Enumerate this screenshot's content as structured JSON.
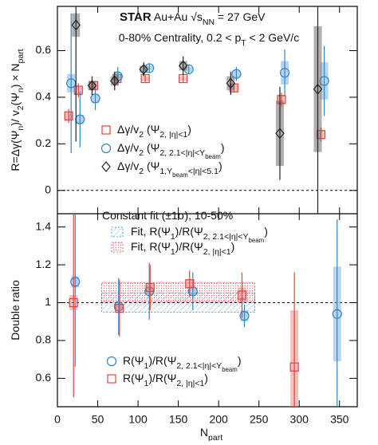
{
  "chart_data": [
    {
      "type": "scatter",
      "title": [
        {
          "b": "STAR"
        },
        "  Au+Au  ",
        "√s",
        {
          "sub": "NN"
        },
        " = 27 GeV"
      ],
      "subtitle": [
        "0-80% Centrality, 0.2 < p",
        {
          "sub": "T"
        },
        " < 2 GeV/c"
      ],
      "ylabel": [
        "R=Δγ(Ψ",
        {
          "sub": "n"
        },
        ")/ v",
        {
          "sub": "2"
        },
        "(Ψ",
        {
          "sub": "n"
        },
        ") × N",
        {
          "sub": "part"
        }
      ],
      "xlim": [
        0,
        372
      ],
      "ylim": [
        -0.1,
        0.79
      ],
      "yticks": [
        0,
        0.2,
        0.4,
        0.6
      ],
      "ref_line": 0,
      "series": [
        {
          "name": [
            "Δγ/v",
            {
              "sub": "2"
            },
            " (Ψ",
            {
              "sub": "2, |η|<1"
            },
            ")"
          ],
          "color": "#e8413c",
          "sys_color": "rgba(240,110,110,0.45)",
          "marker": "square",
          "x": [
            14,
            26,
            45,
            74,
            109,
            156,
            219,
            278,
            327
          ],
          "values": [
            0.32,
            0.43,
            0.45,
            0.48,
            0.48,
            0.48,
            0.44,
            0.39,
            0.24
          ],
          "errors": [
            0.03,
            0.03,
            0.02,
            0.02,
            0.015,
            0.015,
            0.02,
            0.03,
            0.03
          ],
          "sys": [
            0.02,
            0.02,
            0.015,
            0.015,
            0.01,
            0.01,
            0.015,
            0.02,
            0.02
          ]
        },
        {
          "name": [
            "Δγ/v",
            {
              "sub": "2"
            },
            " (Ψ",
            {
              "sub": [
                "2, 2.1<|η|<Y",
                {
                  "sub": "beam"
                }
              ]
            },
            ")"
          ],
          "color": "#2e86c9",
          "sys_color": "rgba(100,160,220,0.45)",
          "marker": "circle",
          "x": [
            17,
            28,
            47,
            75,
            114,
            163,
            222,
            282,
            331
          ],
          "values": [
            0.46,
            0.305,
            0.395,
            0.49,
            0.525,
            0.52,
            0.5,
            0.505,
            0.47
          ],
          "errors": [
            0.3,
            0.12,
            0.05,
            0.04,
            0.02,
            0.02,
            0.03,
            0.1,
            0.15
          ],
          "sys": [
            0.04,
            0.02,
            0.02,
            0.015,
            0.01,
            0.01,
            0.015,
            0.05,
            0.08
          ]
        },
        {
          "name": [
            "Δγ/v",
            {
              "sub": "2"
            },
            " (Ψ",
            {
              "sub": [
                "1,Y",
                {
                  "sub": "beam"
                },
                "<|η|<5.1"
              ]
            },
            ")"
          ],
          "color": "#222222",
          "sys_color": "rgba(110,110,110,0.55)",
          "marker": "diamond",
          "x": [
            23,
            43,
            71,
            107,
            156,
            215,
            276,
            323
          ],
          "values": [
            0.71,
            0.45,
            0.47,
            0.52,
            0.535,
            0.46,
            0.245,
            0.435
          ],
          "errors": [
            0.5,
            0.04,
            0.04,
            0.03,
            0.04,
            0.05,
            0.2,
            0.55
          ],
          "sys": [
            0.05,
            0.02,
            0.02,
            0.015,
            0.02,
            0.03,
            0.14,
            0.27
          ]
        }
      ]
    },
    {
      "type": "scatter",
      "ylabel": [
        "Double ratio"
      ],
      "xlabel": [
        "N",
        {
          "sub": "part"
        }
      ],
      "annotation": [
        "Constant fit (±1σ), 10-50%"
      ],
      "xlim": [
        0,
        372
      ],
      "xticks": [
        0,
        50,
        100,
        150,
        200,
        250,
        300,
        350
      ],
      "ylim": [
        0.45,
        1.47
      ],
      "yticks": [
        0.6,
        0.8,
        1,
        1.2,
        1.4
      ],
      "ref_line": 1,
      "fits": [
        {
          "name": [
            "Fit, R(Ψ",
            {
              "sub": "1"
            },
            ")/R(Ψ",
            {
              "sub": [
                "2, 2.1<|η|<Y",
                {
                  "sub": "beam"
                }
              ]
            },
            ")"
          ],
          "color": "#2e86c9",
          "pattern": "hatch",
          "value": 1.0,
          "error": 0.05,
          "x_range": [
            55,
            245
          ]
        },
        {
          "name": [
            "Fit, R(Ψ",
            {
              "sub": "1"
            },
            ")/R(Ψ",
            {
              "sub": "2, |η|<1"
            },
            ")"
          ],
          "color": "#e8413c",
          "pattern": "dots",
          "value": 1.055,
          "error": 0.05,
          "x_range": [
            55,
            245
          ]
        }
      ],
      "series": [
        {
          "name": [
            "R(Ψ",
            {
              "sub": "1"
            },
            ")/R(Ψ",
            {
              "sub": [
                "2, 2.1<|η|<Y",
                {
                  "sub": "beam"
                }
              ]
            },
            ")"
          ],
          "color": "#2e86c9",
          "sys_color": "rgba(100,160,220,0.45)",
          "marker": "circle",
          "x": [
            22,
            76,
            114,
            168,
            232,
            347
          ],
          "values": [
            1.11,
            0.98,
            1.06,
            1.06,
            0.93,
            0.94
          ],
          "errors": [
            0.45,
            0.15,
            0.15,
            0.1,
            0.06,
            0.5
          ],
          "sys": [
            0.03,
            0.02,
            0.02,
            0.02,
            0.03,
            0.25
          ]
        },
        {
          "name": [
            "R(Ψ",
            {
              "sub": "1"
            },
            ")/R(Ψ",
            {
              "sub": "2, |η|<1"
            },
            ")"
          ],
          "color": "#e8413c",
          "sys_color": "rgba(240,110,110,0.45)",
          "marker": "square",
          "x": [
            20,
            77,
            115,
            164,
            229,
            294
          ],
          "values": [
            1.0,
            0.97,
            1.08,
            1.1,
            1.04,
            0.66
          ],
          "errors": [
            0.5,
            0.15,
            0.12,
            0.07,
            0.12,
            0.5
          ],
          "sys": [
            0.04,
            0.02,
            0.02,
            0.02,
            0.04,
            0.3
          ]
        }
      ]
    }
  ]
}
